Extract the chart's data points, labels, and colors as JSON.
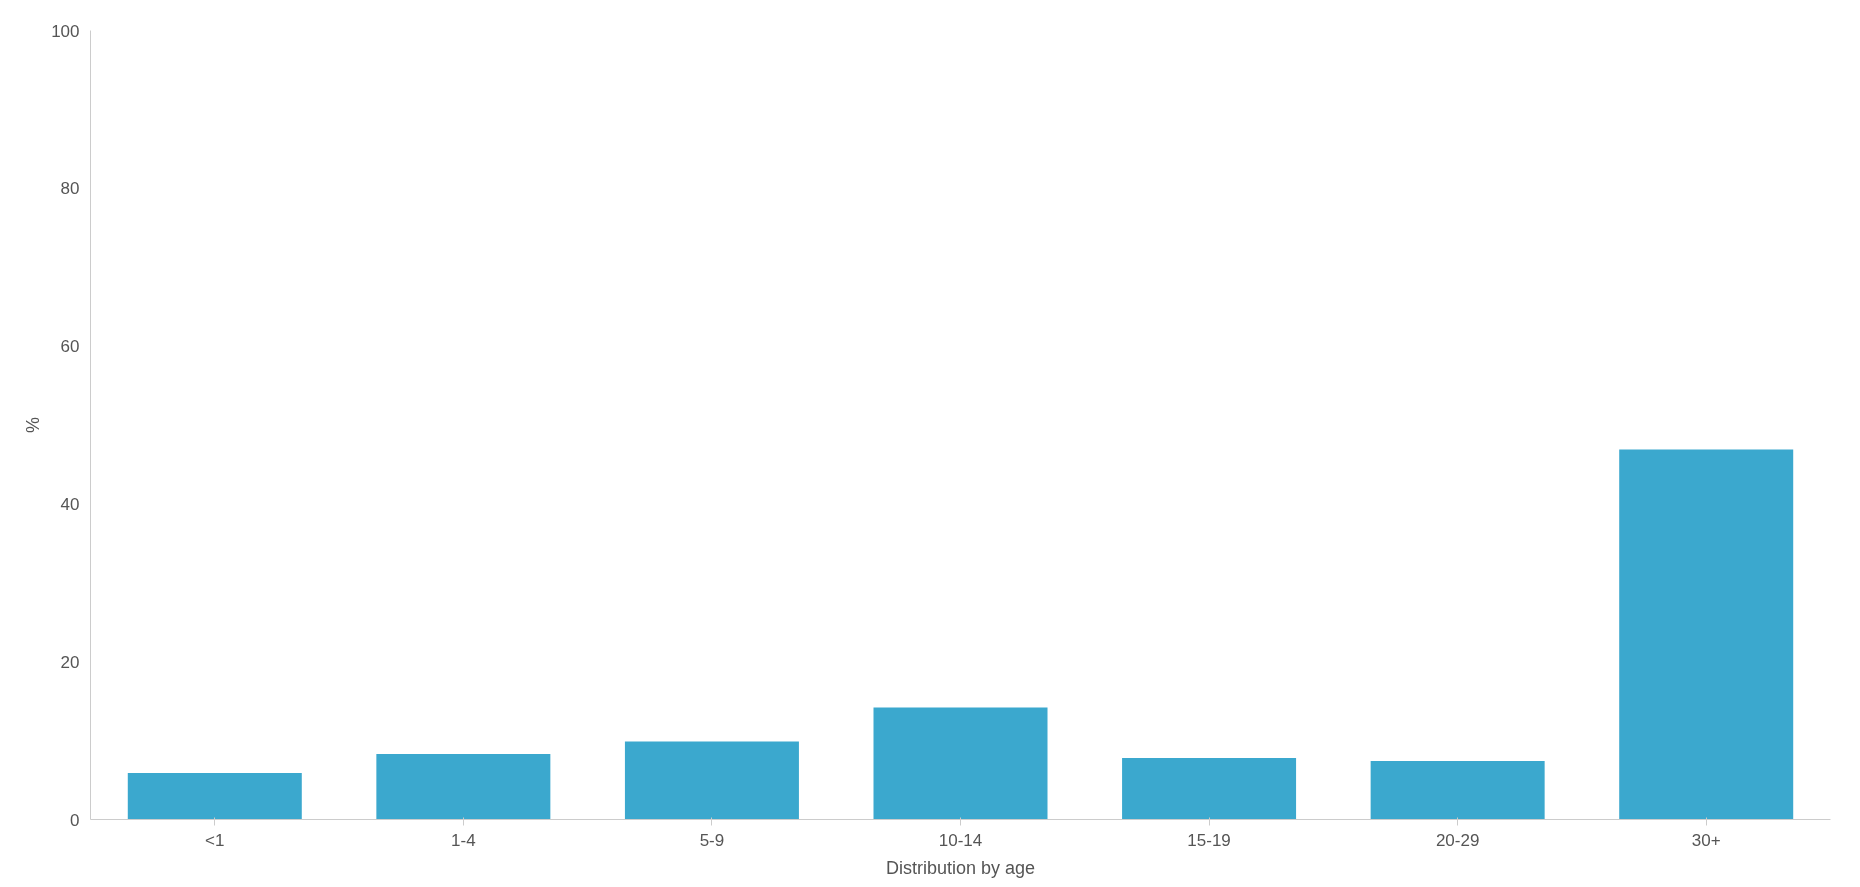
{
  "chart_data": {
    "type": "bar",
    "xlabel": "Distribution by age",
    "ylabel": "%",
    "categories": [
      "<1",
      "1-4",
      "5-9",
      "10-14",
      "15-19",
      "20-29",
      "30+"
    ],
    "values": [
      5.9,
      8.3,
      9.9,
      14.2,
      7.8,
      7.4,
      46.9
    ],
    "color": "#3ba8ce",
    "ylim": [
      0,
      100
    ],
    "yticks": [
      0,
      20,
      40,
      60,
      80,
      100
    ],
    "grid": false
  }
}
